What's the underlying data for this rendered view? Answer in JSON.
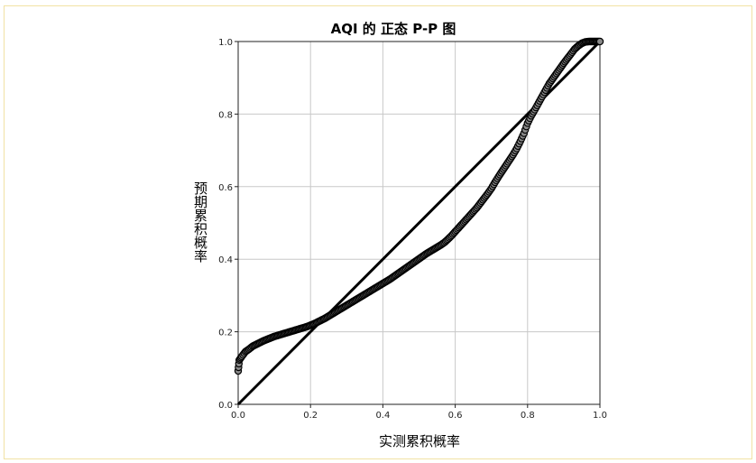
{
  "chart_data": {
    "type": "scatter",
    "title": "AQI 的 正态 P-P 图",
    "xlabel": "实测累积概率",
    "ylabel": "预期累积概率",
    "xlim": [
      0.0,
      1.0
    ],
    "ylim": [
      0.0,
      1.0
    ],
    "x_ticks": [
      "0.0",
      "0.2",
      "0.4",
      "0.6",
      "0.8",
      "1.0"
    ],
    "y_ticks": [
      "0.0",
      "0.2",
      "0.4",
      "0.6",
      "0.8",
      "1.0"
    ],
    "grid": true,
    "reference_line": {
      "x": [
        0.0,
        1.0
      ],
      "y": [
        0.0,
        1.0
      ]
    },
    "colors": {
      "points_fill": "#8a8a8a",
      "points_stroke": "#000000",
      "grid": "#c8c8c8",
      "line": "#000000"
    },
    "series": [
      {
        "x": [
          0.0,
          0.003,
          0.01,
          0.02,
          0.03,
          0.04,
          0.05,
          0.06,
          0.07,
          0.08,
          0.09,
          0.1,
          0.11,
          0.12,
          0.13,
          0.14,
          0.15,
          0.16,
          0.17,
          0.18,
          0.19,
          0.2,
          0.21,
          0.22,
          0.23,
          0.24,
          0.25,
          0.26,
          0.27,
          0.28,
          0.29,
          0.3,
          0.31,
          0.32,
          0.33,
          0.34,
          0.35,
          0.36,
          0.37,
          0.38,
          0.39,
          0.4,
          0.41,
          0.42,
          0.43,
          0.44,
          0.45,
          0.46,
          0.47,
          0.48,
          0.49,
          0.5,
          0.51,
          0.52,
          0.53,
          0.54,
          0.55,
          0.56,
          0.57,
          0.58,
          0.59,
          0.6,
          0.61,
          0.62,
          0.63,
          0.64,
          0.65,
          0.66,
          0.67,
          0.68,
          0.69,
          0.7,
          0.71,
          0.72,
          0.73,
          0.74,
          0.75,
          0.76,
          0.77,
          0.78,
          0.79,
          0.8,
          0.81,
          0.82,
          0.83,
          0.84,
          0.85,
          0.86,
          0.87,
          0.88,
          0.89,
          0.9,
          0.91,
          0.92,
          0.93,
          0.94,
          0.95,
          0.96,
          0.97,
          0.98,
          0.99,
          1.0
        ],
        "y": [
          0.092,
          0.122,
          0.132,
          0.145,
          0.152,
          0.16,
          0.165,
          0.17,
          0.175,
          0.179,
          0.183,
          0.187,
          0.19,
          0.193,
          0.196,
          0.199,
          0.202,
          0.205,
          0.208,
          0.211,
          0.214,
          0.218,
          0.222,
          0.227,
          0.232,
          0.237,
          0.243,
          0.249,
          0.255,
          0.261,
          0.267,
          0.273,
          0.279,
          0.285,
          0.291,
          0.297,
          0.303,
          0.309,
          0.315,
          0.321,
          0.327,
          0.333,
          0.339,
          0.345,
          0.352,
          0.359,
          0.366,
          0.373,
          0.38,
          0.387,
          0.394,
          0.401,
          0.408,
          0.415,
          0.421,
          0.427,
          0.433,
          0.439,
          0.446,
          0.455,
          0.465,
          0.476,
          0.487,
          0.498,
          0.509,
          0.52,
          0.531,
          0.542,
          0.555,
          0.568,
          0.581,
          0.595,
          0.612,
          0.628,
          0.643,
          0.658,
          0.673,
          0.688,
          0.705,
          0.725,
          0.747,
          0.775,
          0.795,
          0.812,
          0.83,
          0.848,
          0.866,
          0.884,
          0.898,
          0.912,
          0.926,
          0.94,
          0.953,
          0.966,
          0.979,
          0.988,
          0.995,
          0.999,
          1.0,
          1.0,
          1.0,
          1.0
        ]
      }
    ]
  }
}
